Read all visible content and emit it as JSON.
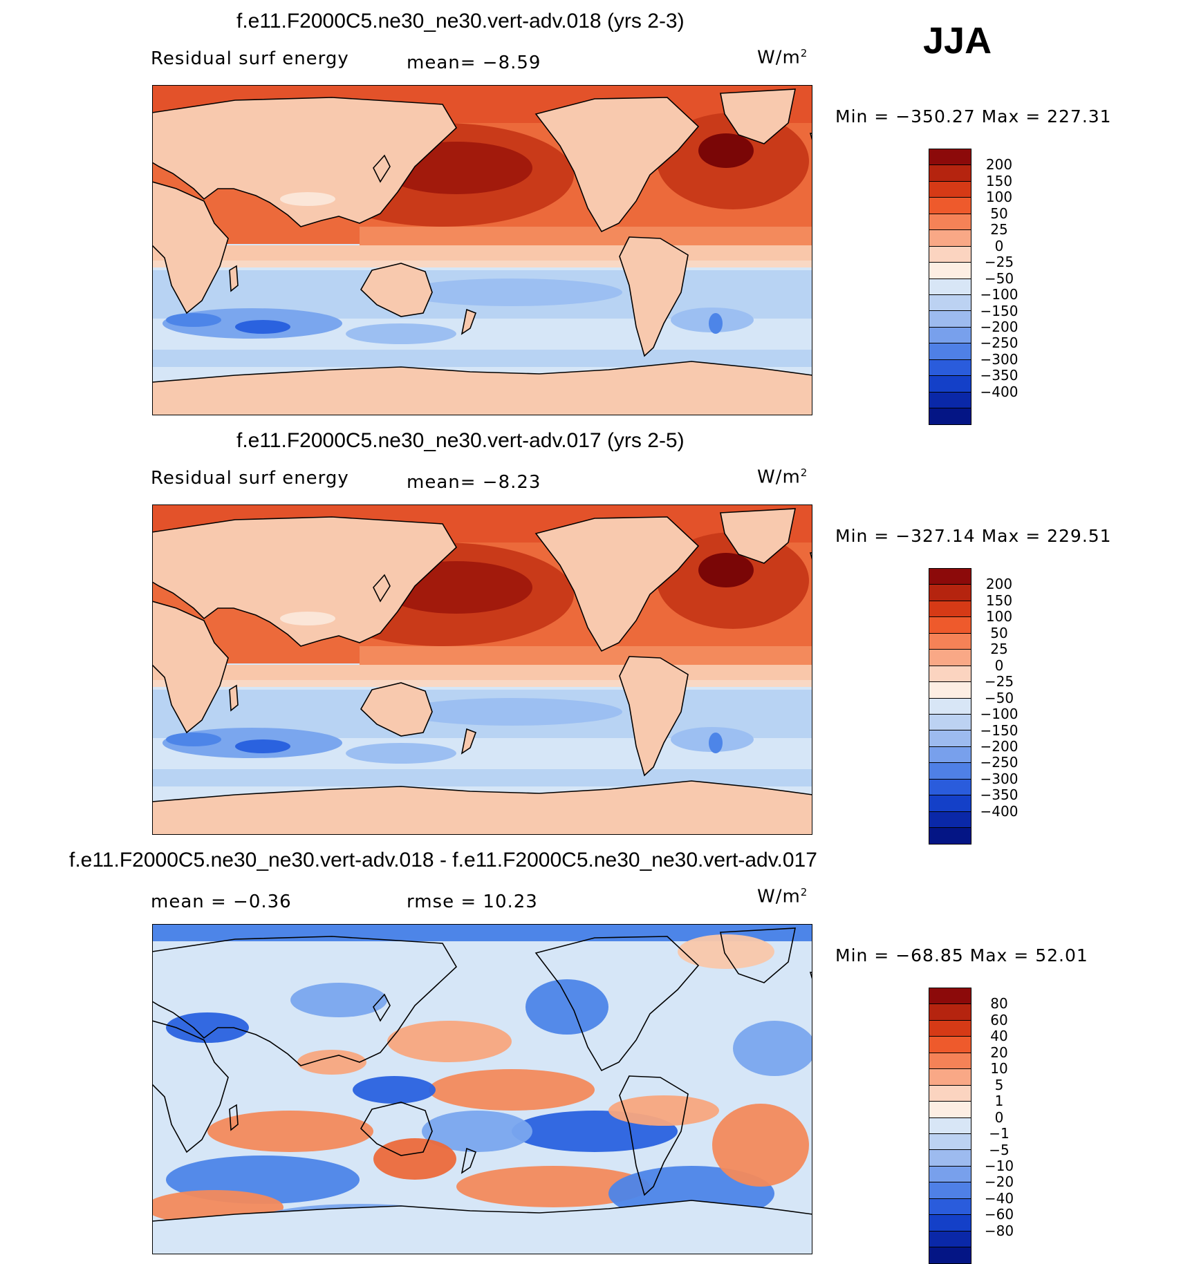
{
  "season": "JJA",
  "colors": {
    "warm": [
      "#f9d8c4",
      "#f9c7aa",
      "#f8a77e",
      "#f38a5c",
      "#ec6a3b",
      "#e3522a",
      "#c93a19",
      "#a21a0c",
      "#7a0606"
    ],
    "cold": [
      "#d6e6f7",
      "#b8d3f3",
      "#9cbff2",
      "#7aa6ee",
      "#4d85e8",
      "#2a62df",
      "#1646cf",
      "#0c2ebb",
      "#061b95",
      "#03107a"
    ],
    "land": "#f8c9ae",
    "coast": "#000000"
  },
  "panels": [
    {
      "title": "f.e11.F2000C5.ne30_ne30.vert-adv.018 (yrs 2-3)",
      "left_label": "Residual surf energy",
      "center_label": "mean=   −8.59",
      "units": "W/m",
      "units_sup": "2",
      "minmax": "Min  =  −350.27  Max  =  227.31",
      "colorbar_labels": [
        "200",
        "150",
        "100",
        "50",
        "25",
        "0",
        "−25",
        "−50",
        "−100",
        "−150",
        "−200",
        "−250",
        "−300",
        "−350",
        "−400"
      ],
      "colorbar_colors": [
        "#8c0a0a",
        "#b5240f",
        "#d63a16",
        "#ee5a2c",
        "#f58257",
        "#f9a886",
        "#fbd4c0",
        "#fdeee3",
        "#d8e6f6",
        "#bcd2f2",
        "#9dbbef",
        "#78a0ec",
        "#4f80e6",
        "#2a5cdc",
        "#1440c8",
        "#0a28a8",
        "#041585"
      ],
      "map_style": "mean"
    },
    {
      "title": "f.e11.F2000C5.ne30_ne30.vert-adv.017 (yrs 2-5)",
      "left_label": "Residual surf energy",
      "center_label": "mean=   −8.23",
      "units": "W/m",
      "units_sup": "2",
      "minmax": "Min  =  −327.14  Max  =  229.51",
      "colorbar_labels": [
        "200",
        "150",
        "100",
        "50",
        "25",
        "0",
        "−25",
        "−50",
        "−100",
        "−150",
        "−200",
        "−250",
        "−300",
        "−350",
        "−400"
      ],
      "colorbar_colors": [
        "#8c0a0a",
        "#b5240f",
        "#d63a16",
        "#ee5a2c",
        "#f58257",
        "#f9a886",
        "#fbd4c0",
        "#fdeee3",
        "#d8e6f6",
        "#bcd2f2",
        "#9dbbef",
        "#78a0ec",
        "#4f80e6",
        "#2a5cdc",
        "#1440c8",
        "#0a28a8",
        "#041585"
      ],
      "map_style": "mean"
    },
    {
      "title": "f.e11.F2000C5.ne30_ne30.vert-adv.018 - f.e11.F2000C5.ne30_ne30.vert-adv.017",
      "left_label": "mean =   −0.36",
      "center_label": "rmse =   10.23",
      "units": "W/m",
      "units_sup": "2",
      "minmax": "Min  =  −68.85  Max  =   52.01",
      "colorbar_labels": [
        "80",
        "60",
        "40",
        "20",
        "10",
        "5",
        "1",
        "0",
        "−1",
        "−5",
        "−10",
        "−20",
        "−40",
        "−60",
        "−80"
      ],
      "colorbar_colors": [
        "#8c0a0a",
        "#b5240f",
        "#d63a16",
        "#ee5a2c",
        "#f58257",
        "#f9a886",
        "#fbd4c0",
        "#fdeee3",
        "#d8e6f6",
        "#bcd2f2",
        "#9dbbef",
        "#78a0ec",
        "#4f80e6",
        "#2a5cdc",
        "#1440c8",
        "#0a28a8",
        "#041585"
      ],
      "map_style": "diff"
    }
  ]
}
